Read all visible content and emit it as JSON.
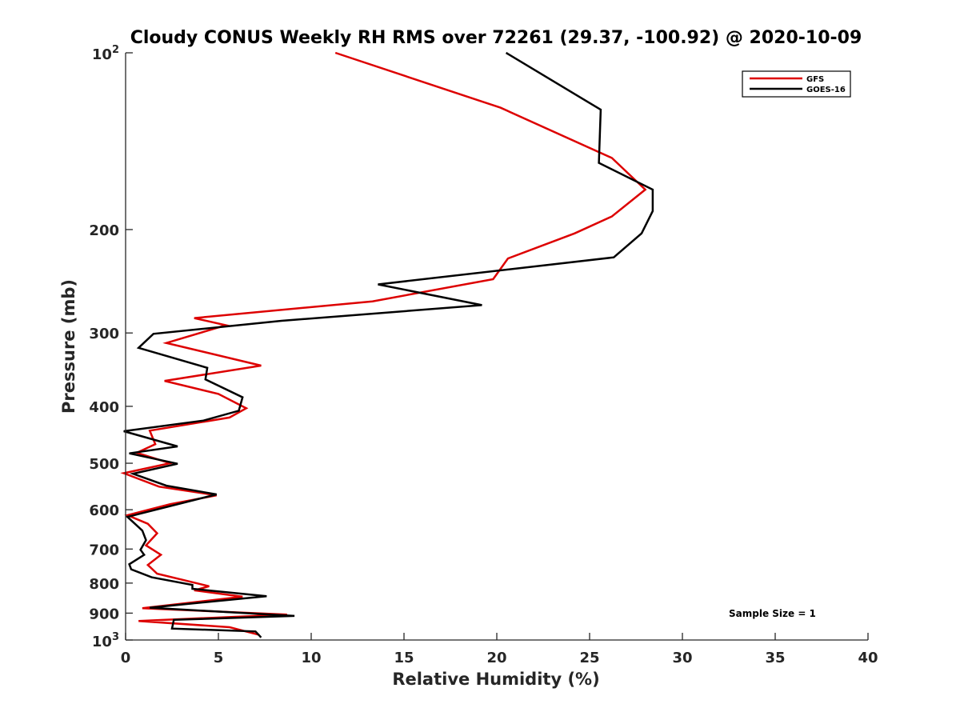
{
  "chart_data": {
    "type": "line",
    "title": "Cloudy CONUS Weekly RH RMS over 72261 (29.37, -100.92) @ 2020-10-09",
    "xlabel": "Relative Humidity (%)",
    "ylabel": "Pressure (mb)",
    "xlim": [
      0,
      40
    ],
    "ylim": [
      100,
      1000
    ],
    "y_scale": "log",
    "y_reversed": true,
    "grid": false,
    "legend_position": "top-right",
    "x_ticks": [
      "0",
      "5",
      "10",
      "15",
      "20",
      "25",
      "30",
      "35",
      "40"
    ],
    "x_tick_values": [
      0,
      5,
      10,
      15,
      20,
      25,
      30,
      35,
      40
    ],
    "y_ticks": [
      {
        "value": 100,
        "base": "10",
        "exp": "2",
        "label": ""
      },
      {
        "value": 200,
        "base": "",
        "exp": "",
        "label": "200"
      },
      {
        "value": 300,
        "base": "",
        "exp": "",
        "label": "300"
      },
      {
        "value": 400,
        "base": "",
        "exp": "",
        "label": "400"
      },
      {
        "value": 500,
        "base": "",
        "exp": "",
        "label": "500"
      },
      {
        "value": 600,
        "base": "",
        "exp": "",
        "label": "600"
      },
      {
        "value": 700,
        "base": "",
        "exp": "",
        "label": "700"
      },
      {
        "value": 800,
        "base": "",
        "exp": "",
        "label": "800"
      },
      {
        "value": 900,
        "base": "",
        "exp": "",
        "label": "900"
      },
      {
        "value": 1000,
        "base": "10",
        "exp": "3",
        "label": ""
      }
    ],
    "series": [
      {
        "name": "GFS",
        "color": "#dd0000",
        "points": [
          [
            11.3,
            100
          ],
          [
            20.2,
            124
          ],
          [
            26.2,
            151
          ],
          [
            28.0,
            171
          ],
          [
            26.2,
            190
          ],
          [
            24.2,
            203
          ],
          [
            20.6,
            224
          ],
          [
            19.8,
            243
          ],
          [
            13.3,
            265
          ],
          [
            3.7,
            283
          ],
          [
            5.4,
            291
          ],
          [
            2.2,
            312
          ],
          [
            7.3,
            341
          ],
          [
            2.1,
            362
          ],
          [
            5.0,
            381
          ],
          [
            6.5,
            403
          ],
          [
            5.6,
            418
          ],
          [
            1.3,
            440
          ],
          [
            1.6,
            464
          ],
          [
            0.6,
            480
          ],
          [
            2.4,
            500
          ],
          [
            -0.1,
            520
          ],
          [
            1.8,
            548
          ],
          [
            4.9,
            567
          ],
          [
            2.4,
            587
          ],
          [
            0.1,
            613
          ],
          [
            1.2,
            634
          ],
          [
            1.7,
            658
          ],
          [
            1.1,
            690
          ],
          [
            1.9,
            716
          ],
          [
            1.2,
            745
          ],
          [
            1.7,
            771
          ],
          [
            4.5,
            810
          ],
          [
            3.7,
            823
          ],
          [
            6.3,
            844
          ],
          [
            0.9,
            883
          ],
          [
            8.7,
            905
          ],
          [
            0.7,
            928
          ],
          [
            5.6,
            951
          ],
          [
            7.2,
            980
          ]
        ]
      },
      {
        "name": "GOES-16",
        "color": "#000000",
        "points": [
          [
            20.5,
            100
          ],
          [
            25.6,
            125
          ],
          [
            25.5,
            154
          ],
          [
            28.4,
            171
          ],
          [
            28.4,
            186
          ],
          [
            27.8,
            203
          ],
          [
            26.3,
            223
          ],
          [
            13.6,
            248
          ],
          [
            19.2,
            269
          ],
          [
            8.4,
            286
          ],
          [
            1.5,
            301
          ],
          [
            0.7,
            318
          ],
          [
            4.4,
            344
          ],
          [
            4.3,
            360
          ],
          [
            6.3,
            386
          ],
          [
            6.1,
            407
          ],
          [
            4.2,
            423
          ],
          [
            -0.1,
            441
          ],
          [
            2.8,
            468
          ],
          [
            0.2,
            481
          ],
          [
            2.8,
            501
          ],
          [
            0.4,
            521
          ],
          [
            2.2,
            546
          ],
          [
            4.9,
            565
          ],
          [
            0.1,
            617
          ],
          [
            0.9,
            651
          ],
          [
            1.1,
            676
          ],
          [
            0.8,
            702
          ],
          [
            1.0,
            716
          ],
          [
            0.2,
            743
          ],
          [
            0.3,
            758
          ],
          [
            1.4,
            782
          ],
          [
            3.6,
            806
          ],
          [
            3.6,
            818
          ],
          [
            7.6,
            842
          ],
          [
            1.3,
            881
          ],
          [
            9.1,
            910
          ],
          [
            2.6,
            924
          ],
          [
            2.5,
            956
          ],
          [
            7.0,
            967
          ],
          [
            7.3,
            990
          ]
        ]
      }
    ],
    "annotations": [
      "Sample Size = 1"
    ]
  }
}
